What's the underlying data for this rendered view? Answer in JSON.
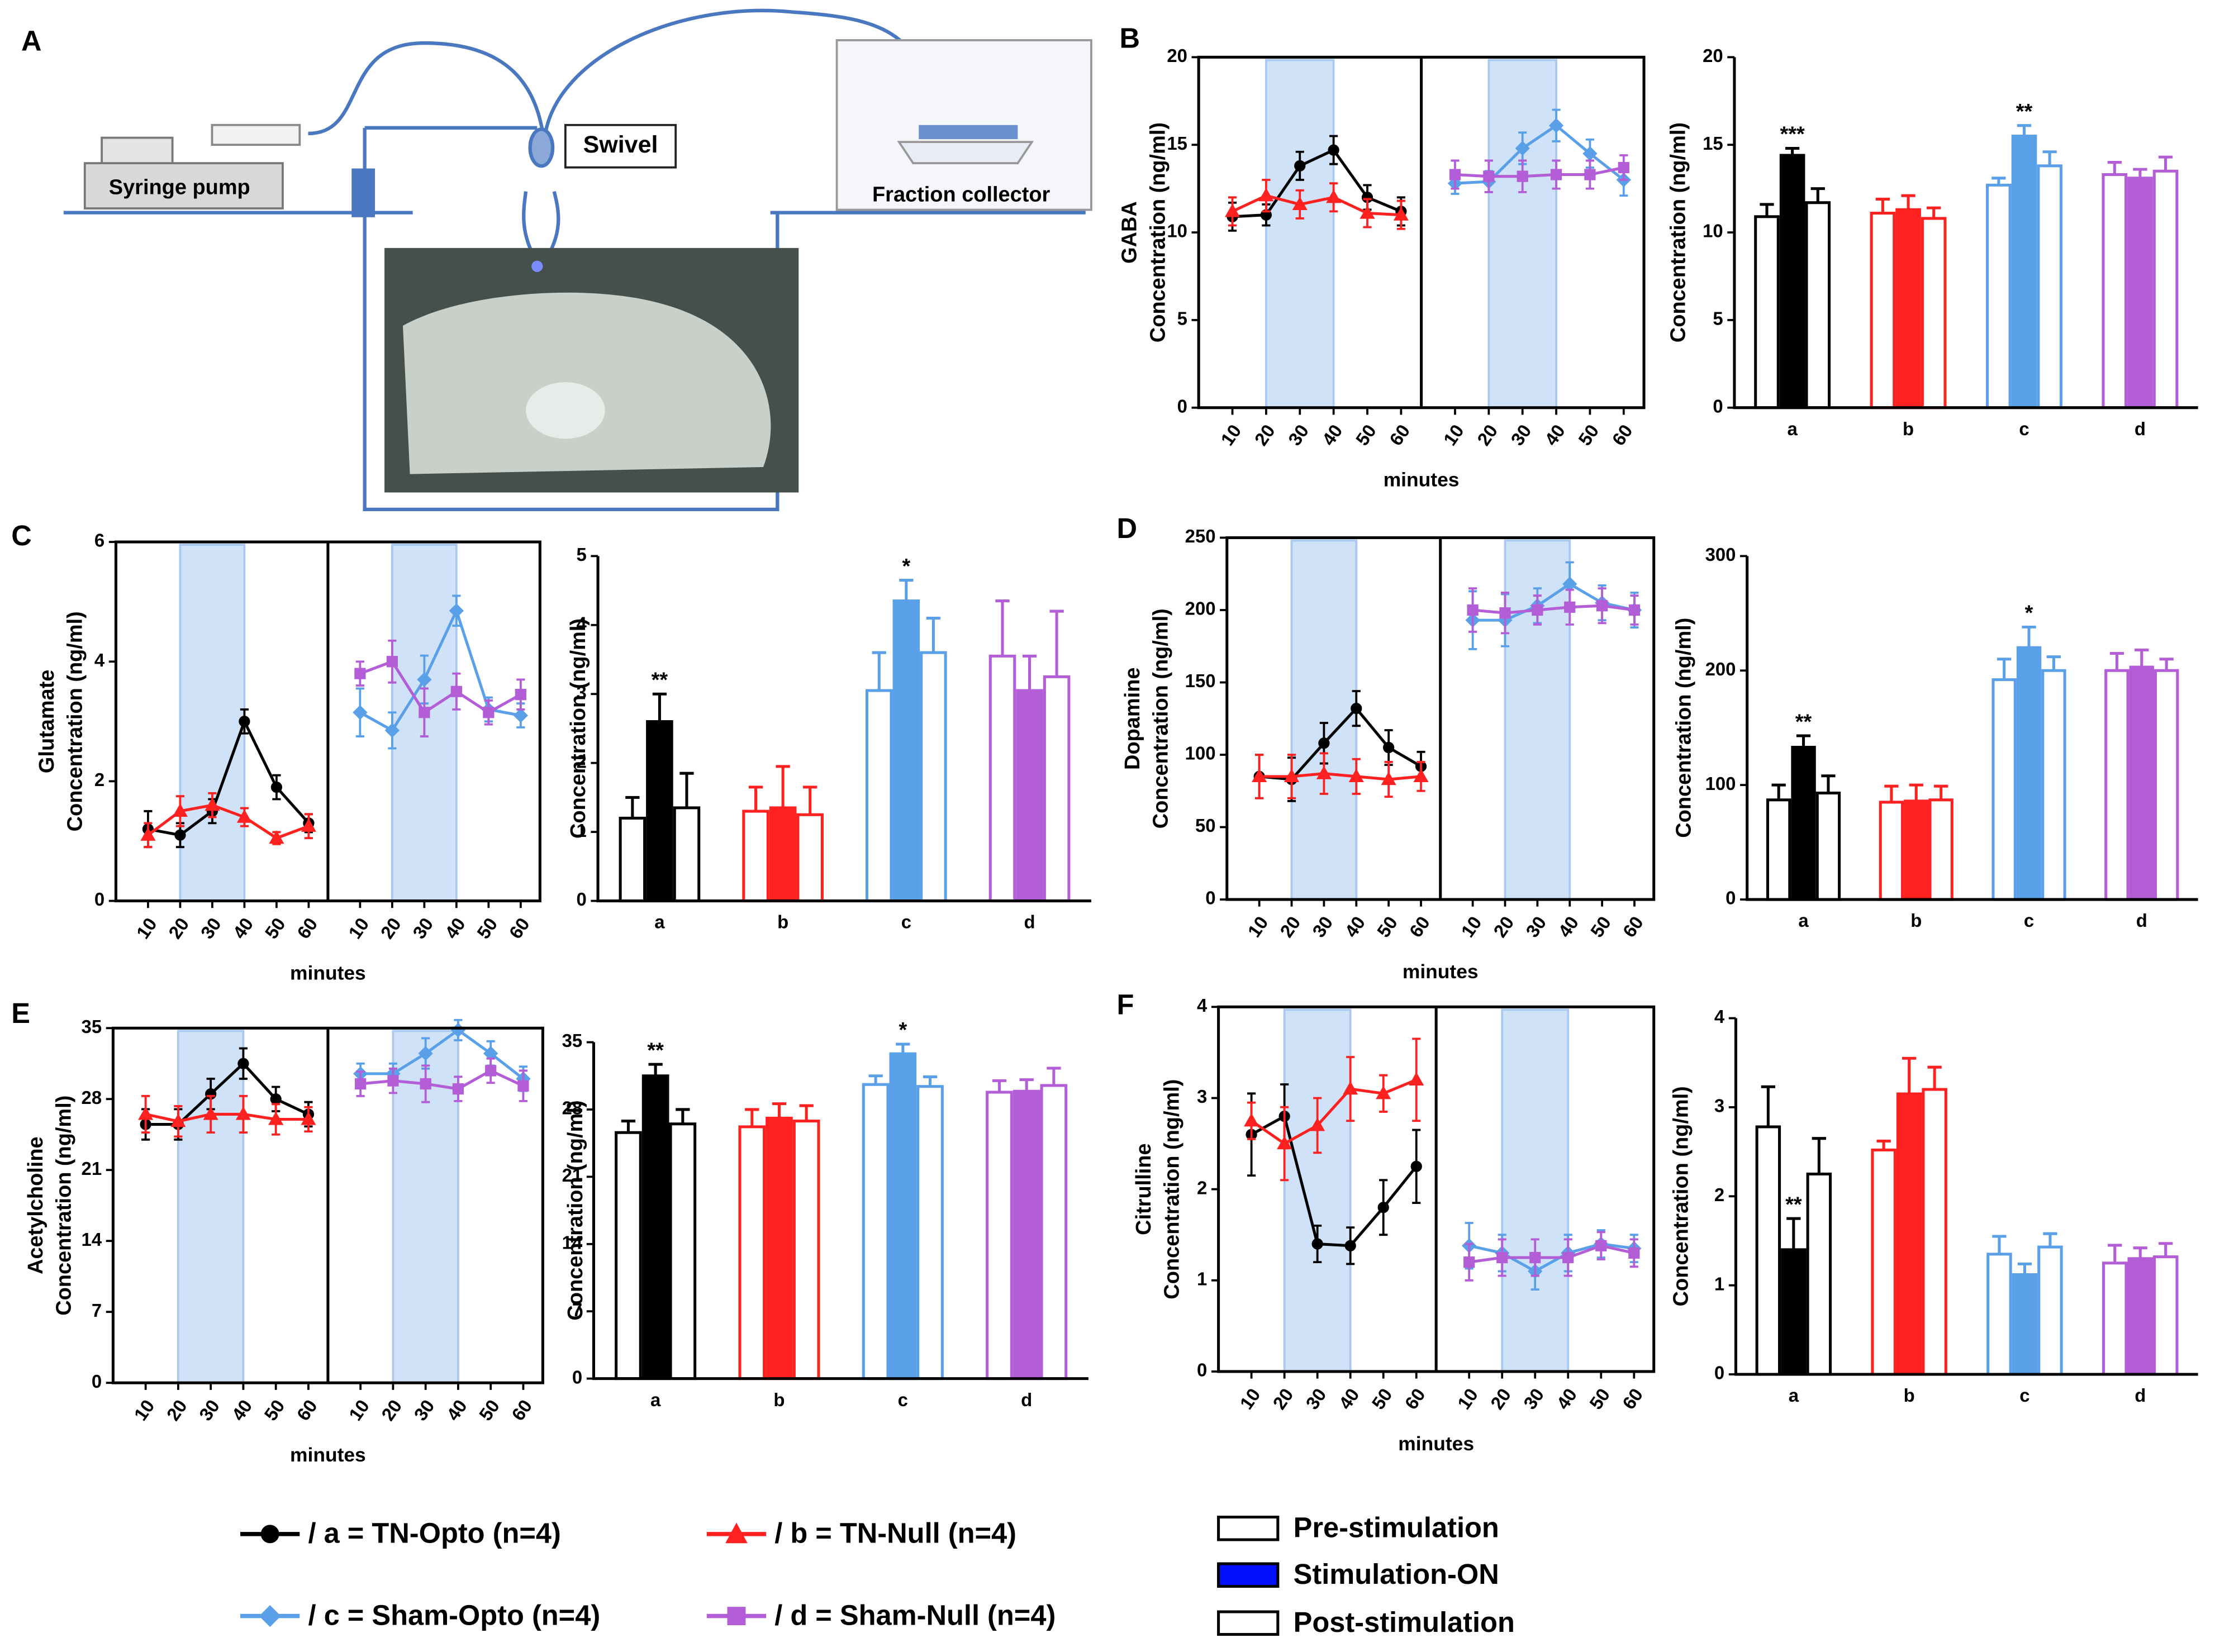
{
  "panel_a": {
    "label": "A",
    "labels": [
      "Syringe pump",
      "Swivel",
      "Fraction collector"
    ]
  },
  "legend": {
    "series": [
      {
        "name": "/ a = TN-Opto (n=4)",
        "color": "#000000",
        "marker": "circle"
      },
      {
        "name": "/ b = TN-Null (n=4)",
        "color": "#ff2020",
        "marker": "triangle"
      },
      {
        "name": "/ c = Sham-Opto (n=4)",
        "color": "#5aa0e8",
        "marker": "diamond"
      },
      {
        "name": "/ d = Sham-Null (n=4)",
        "color": "#b35dd6",
        "marker": "square"
      }
    ],
    "phases": [
      {
        "name": "Pre-stimulation",
        "color": "#ffffff"
      },
      {
        "name": "Stimulation-ON",
        "color": "#0010ff"
      },
      {
        "name": "Post-stimulation",
        "color": "#ffffff"
      }
    ]
  },
  "chart_data": [
    {
      "type": "line",
      "label": "B",
      "y_label": [
        "GABA",
        "Concentration (ng/ml)"
      ],
      "x_label": "minutes",
      "x": [
        10,
        20,
        30,
        40,
        50,
        60
      ],
      "xlim": [
        0,
        66
      ],
      "shade": [
        20,
        40
      ],
      "ylim": [
        0,
        20
      ],
      "yticks": [
        0,
        5,
        10,
        15,
        20
      ],
      "panels": [
        {
          "series": [
            {
              "color": "#000000",
              "marker": "circle",
              "values": [
                10.9,
                11.0,
                13.8,
                14.7,
                12.0,
                11.2
              ],
              "errors": [
                0.8,
                0.6,
                0.8,
                0.8,
                0.7,
                0.8
              ]
            },
            {
              "color": "#ff2020",
              "marker": "triangle",
              "values": [
                11.2,
                12.1,
                11.6,
                12.0,
                11.1,
                11.0
              ],
              "errors": [
                0.8,
                0.9,
                0.8,
                0.8,
                0.8,
                0.8
              ]
            }
          ]
        },
        {
          "series": [
            {
              "color": "#5aa0e8",
              "marker": "diamond",
              "values": [
                12.8,
                12.9,
                14.8,
                16.1,
                14.5,
                13.0
              ],
              "errors": [
                0.6,
                0.6,
                0.9,
                0.9,
                0.8,
                0.9
              ]
            },
            {
              "color": "#b35dd6",
              "marker": "square",
              "values": [
                13.3,
                13.2,
                13.2,
                13.3,
                13.3,
                13.7
              ],
              "errors": [
                0.8,
                0.9,
                0.9,
                0.8,
                0.8,
                0.7
              ]
            }
          ]
        }
      ]
    },
    {
      "type": "bar",
      "y_label": "Concentration (ng/ml)",
      "categories": [
        "a",
        "b",
        "c",
        "d"
      ],
      "ylim": [
        0,
        20
      ],
      "yticks": [
        0,
        5,
        10,
        15,
        20
      ],
      "colors": [
        "#000000",
        "#ff2020",
        "#5aa0e8",
        "#b35dd6"
      ],
      "values": [
        [
          10.9,
          14.4,
          11.7
        ],
        [
          11.1,
          11.3,
          10.8
        ],
        [
          12.7,
          15.5,
          13.8
        ],
        [
          13.3,
          13.1,
          13.5
        ]
      ],
      "errors": [
        [
          0.7,
          0.4,
          0.8
        ],
        [
          0.8,
          0.8,
          0.6
        ],
        [
          0.4,
          0.6,
          0.8
        ],
        [
          0.7,
          0.5,
          0.8
        ]
      ],
      "significance": [
        "***",
        null,
        "**",
        null
      ]
    },
    {
      "type": "line",
      "label": "C",
      "y_label": [
        "Glutamate",
        "Concentration (ng/ml)"
      ],
      "x_label": "minutes",
      "x": [
        10,
        20,
        30,
        40,
        50,
        60
      ],
      "xlim": [
        0,
        66
      ],
      "shade": [
        20,
        40
      ],
      "ylim": [
        0,
        6
      ],
      "yticks": [
        0,
        2,
        4,
        6
      ],
      "panels": [
        {
          "series": [
            {
              "color": "#000000",
              "marker": "circle",
              "values": [
                1.2,
                1.1,
                1.5,
                3.0,
                1.9,
                1.3
              ],
              "errors": [
                0.3,
                0.2,
                0.2,
                0.2,
                0.2,
                0.15
              ]
            },
            {
              "color": "#ff2020",
              "marker": "triangle",
              "values": [
                1.1,
                1.5,
                1.6,
                1.4,
                1.05,
                1.25
              ],
              "errors": [
                0.2,
                0.25,
                0.2,
                0.15,
                0.1,
                0.2
              ]
            }
          ]
        },
        {
          "series": [
            {
              "color": "#5aa0e8",
              "marker": "diamond",
              "values": [
                3.15,
                2.85,
                3.7,
                4.85,
                3.2,
                3.1
              ],
              "errors": [
                0.4,
                0.3,
                0.4,
                0.25,
                0.2,
                0.2
              ]
            },
            {
              "color": "#b35dd6",
              "marker": "square",
              "values": [
                3.8,
                4.0,
                3.15,
                3.5,
                3.15,
                3.45
              ],
              "errors": [
                0.2,
                0.35,
                0.4,
                0.3,
                0.2,
                0.25
              ]
            }
          ]
        }
      ]
    },
    {
      "type": "bar",
      "y_label": "Concentration (ng/ml)",
      "categories": [
        "a",
        "b",
        "c",
        "d"
      ],
      "ylim": [
        0,
        5
      ],
      "yticks": [
        0,
        1,
        2,
        3,
        4,
        5
      ],
      "colors": [
        "#000000",
        "#ff2020",
        "#5aa0e8",
        "#b35dd6"
      ],
      "values": [
        [
          1.2,
          2.6,
          1.35
        ],
        [
          1.3,
          1.35,
          1.25
        ],
        [
          3.05,
          4.35,
          3.6
        ],
        [
          3.55,
          3.05,
          3.25
        ]
      ],
      "errors": [
        [
          0.3,
          0.4,
          0.5
        ],
        [
          0.35,
          0.6,
          0.4
        ],
        [
          0.55,
          0.3,
          0.5
        ],
        [
          0.8,
          0.5,
          0.95
        ]
      ],
      "significance": [
        "**",
        null,
        "*",
        null
      ]
    },
    {
      "type": "line",
      "label": "D",
      "y_label": [
        "Dopamine",
        "Concentration (ng/ml)"
      ],
      "x_label": "minutes",
      "x": [
        10,
        20,
        30,
        40,
        50,
        60
      ],
      "xlim": [
        0,
        66
      ],
      "shade": [
        20,
        40
      ],
      "ylim": [
        0,
        250
      ],
      "yticks": [
        0,
        50,
        100,
        150,
        200,
        250
      ],
      "panels": [
        {
          "series": [
            {
              "color": "#000000",
              "marker": "circle",
              "values": [
                85,
                83,
                108,
                132,
                105,
                92
              ],
              "errors": [
                15,
                15,
                14,
                12,
                12,
                10
              ]
            },
            {
              "color": "#ff2020",
              "marker": "triangle",
              "values": [
                85,
                85,
                87,
                85,
                83,
                85
              ],
              "errors": [
                15,
                15,
                14,
                12,
                12,
                10
              ]
            }
          ]
        },
        {
          "series": [
            {
              "color": "#5aa0e8",
              "marker": "diamond",
              "values": [
                193,
                193,
                203,
                218,
                205,
                200
              ],
              "errors": [
                20,
                18,
                12,
                15,
                12,
                12
              ]
            },
            {
              "color": "#b35dd6",
              "marker": "square",
              "values": [
                200,
                198,
                200,
                202,
                203,
                200
              ],
              "errors": [
                15,
                14,
                10,
                12,
                12,
                10
              ]
            }
          ]
        }
      ]
    },
    {
      "type": "bar",
      "y_label": "Concentration (ng/ml)",
      "categories": [
        "a",
        "b",
        "c",
        "d"
      ],
      "ylim": [
        0,
        300
      ],
      "yticks": [
        0,
        100,
        200,
        300
      ],
      "colors": [
        "#000000",
        "#ff2020",
        "#5aa0e8",
        "#b35dd6"
      ],
      "values": [
        [
          87,
          133,
          93
        ],
        [
          85,
          86,
          87
        ],
        [
          192,
          220,
          200
        ],
        [
          200,
          203,
          200
        ]
      ],
      "errors": [
        [
          13,
          10,
          15
        ],
        [
          14,
          14,
          12
        ],
        [
          18,
          18,
          12
        ],
        [
          15,
          15,
          10
        ]
      ],
      "significance": [
        "**",
        null,
        "*",
        null
      ]
    },
    {
      "type": "line",
      "label": "E",
      "y_label": [
        "Acetylcholine",
        "Concentration (ng/ml)"
      ],
      "x_label": "minutes",
      "x": [
        10,
        20,
        30,
        40,
        50,
        60
      ],
      "xlim": [
        0,
        66
      ],
      "shade": [
        20,
        40
      ],
      "ylim": [
        0,
        35
      ],
      "yticks": [
        0,
        7,
        14,
        21,
        28,
        35
      ],
      "panels": [
        {
          "series": [
            {
              "color": "#000000",
              "marker": "circle",
              "values": [
                25.5,
                25.5,
                28.5,
                31.5,
                28,
                26.5
              ],
              "errors": [
                1.5,
                1.5,
                1.5,
                1.5,
                1.2,
                1.2
              ]
            },
            {
              "color": "#ff2020",
              "marker": "triangle",
              "values": [
                26.5,
                25.8,
                26.5,
                26.5,
                26,
                26
              ],
              "errors": [
                1.8,
                1.5,
                1.8,
                1.8,
                1.5,
                1.2
              ]
            }
          ]
        },
        {
          "series": [
            {
              "color": "#5aa0e8",
              "marker": "diamond",
              "values": [
                30.5,
                30.5,
                32.5,
                34.8,
                32.5,
                30
              ],
              "errors": [
                1,
                1,
                1.5,
                1,
                1.2,
                1.2
              ]
            },
            {
              "color": "#b35dd6",
              "marker": "square",
              "values": [
                29.5,
                29.8,
                29.5,
                29,
                30.8,
                29.3
              ],
              "errors": [
                1.2,
                1.2,
                1.8,
                1.2,
                1.2,
                1.5
              ]
            }
          ]
        }
      ]
    },
    {
      "type": "bar",
      "y_label": "Concentration (ng/ml)",
      "categories": [
        "a",
        "b",
        "c",
        "d"
      ],
      "ylim": [
        0,
        35
      ],
      "yticks": [
        0,
        7,
        14,
        21,
        28,
        35
      ],
      "colors": [
        "#000000",
        "#ff2020",
        "#5aa0e8",
        "#b35dd6"
      ],
      "values": [
        [
          25.6,
          31.5,
          26.5
        ],
        [
          26.2,
          27.1,
          26.8
        ],
        [
          30.6,
          33.8,
          30.4
        ],
        [
          29.8,
          29.9,
          30.5
        ]
      ],
      "errors": [
        [
          1.2,
          1.2,
          1.5
        ],
        [
          1.8,
          1.5,
          1.6
        ],
        [
          0.9,
          1,
          1
        ],
        [
          1.2,
          1.2,
          1.8
        ]
      ],
      "significance": [
        "**",
        null,
        "*",
        null
      ]
    },
    {
      "type": "line",
      "label": "F",
      "y_label": [
        "Citrulline",
        "Concentration (ng/ml)"
      ],
      "x_label": "minutes",
      "x": [
        10,
        20,
        30,
        40,
        50,
        60
      ],
      "xlim": [
        0,
        66
      ],
      "shade": [
        20,
        40
      ],
      "ylim": [
        0,
        4
      ],
      "yticks": [
        0,
        1,
        2,
        3,
        4
      ],
      "panels": [
        {
          "series": [
            {
              "color": "#000000",
              "marker": "circle",
              "values": [
                2.6,
                2.8,
                1.4,
                1.38,
                1.8,
                2.25
              ],
              "errors": [
                0.45,
                0.35,
                0.2,
                0.2,
                0.3,
                0.4
              ]
            },
            {
              "color": "#ff2020",
              "marker": "triangle",
              "values": [
                2.75,
                2.5,
                2.7,
                3.1,
                3.05,
                3.2
              ],
              "errors": [
                0.2,
                0.4,
                0.3,
                0.35,
                0.2,
                0.45
              ]
            }
          ]
        },
        {
          "series": [
            {
              "color": "#5aa0e8",
              "marker": "diamond",
              "values": [
                1.38,
                1.3,
                1.1,
                1.3,
                1.4,
                1.35
              ],
              "errors": [
                0.25,
                0.2,
                0.2,
                0.2,
                0.15,
                0.15
              ]
            },
            {
              "color": "#b35dd6",
              "marker": "square",
              "values": [
                1.2,
                1.25,
                1.25,
                1.25,
                1.38,
                1.3
              ],
              "errors": [
                0.2,
                0.2,
                0.2,
                0.2,
                0.15,
                0.15
              ]
            }
          ]
        }
      ]
    },
    {
      "type": "bar",
      "y_label": "Concentration (ng/ml)",
      "categories": [
        "a",
        "b",
        "c",
        "d"
      ],
      "ylim": [
        0,
        4
      ],
      "yticks": [
        0,
        1,
        2,
        3,
        4
      ],
      "colors": [
        "#000000",
        "#ff2020",
        "#5aa0e8",
        "#b35dd6"
      ],
      "values": [
        [
          2.78,
          1.4,
          2.25
        ],
        [
          2.52,
          3.15,
          3.2
        ],
        [
          1.35,
          1.12,
          1.43
        ],
        [
          1.25,
          1.3,
          1.32
        ]
      ],
      "errors": [
        [
          0.45,
          0.35,
          0.4
        ],
        [
          0.1,
          0.4,
          0.25
        ],
        [
          0.2,
          0.12,
          0.15
        ],
        [
          0.2,
          0.12,
          0.15
        ]
      ],
      "significance": [
        "**",
        null,
        null,
        null
      ]
    }
  ]
}
